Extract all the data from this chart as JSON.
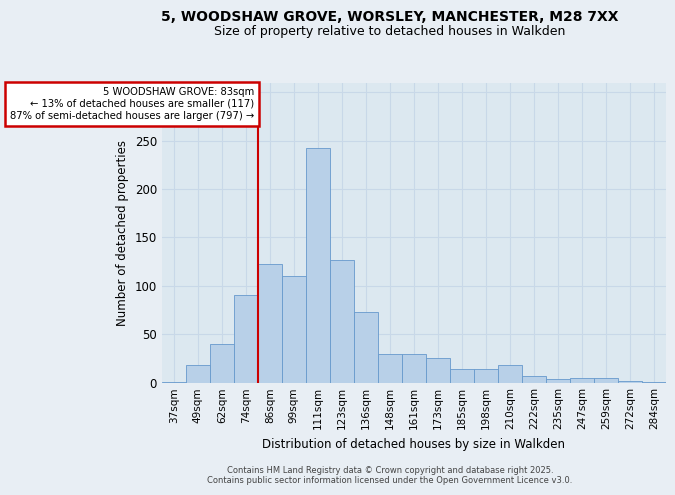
{
  "title_line1": "5, WOODSHAW GROVE, WORSLEY, MANCHESTER, M28 7XX",
  "title_line2": "Size of property relative to detached houses in Walkden",
  "xlabel": "Distribution of detached houses by size in Walkden",
  "ylabel": "Number of detached properties",
  "bar_color": "#b8d0e8",
  "bar_edge_color": "#6699cc",
  "categories": [
    "37sqm",
    "49sqm",
    "62sqm",
    "74sqm",
    "86sqm",
    "99sqm",
    "111sqm",
    "123sqm",
    "136sqm",
    "148sqm",
    "161sqm",
    "173sqm",
    "185sqm",
    "198sqm",
    "210sqm",
    "222sqm",
    "235sqm",
    "247sqm",
    "259sqm",
    "272sqm",
    "284sqm"
  ],
  "values": [
    1,
    18,
    40,
    90,
    122,
    110,
    242,
    127,
    73,
    29,
    29,
    25,
    14,
    14,
    18,
    7,
    4,
    5,
    5,
    2,
    1
  ],
  "ylim": [
    0,
    310
  ],
  "yticks": [
    0,
    50,
    100,
    150,
    200,
    250,
    300
  ],
  "vline_bar_index": 4,
  "marker_label": "5 WOODSHAW GROVE: 83sqm",
  "annotation_line1": "← 13% of detached houses are smaller (117)",
  "annotation_line2": "87% of semi-detached houses are larger (797) →",
  "annotation_box_color": "#ffffff",
  "annotation_box_edge": "#cc0000",
  "vline_color": "#cc0000",
  "grid_color": "#c8d8e8",
  "background_color": "#dce8f0",
  "fig_background": "#e8eef4",
  "footer_line1": "Contains HM Land Registry data © Crown copyright and database right 2025.",
  "footer_line2": "Contains public sector information licensed under the Open Government Licence v3.0."
}
